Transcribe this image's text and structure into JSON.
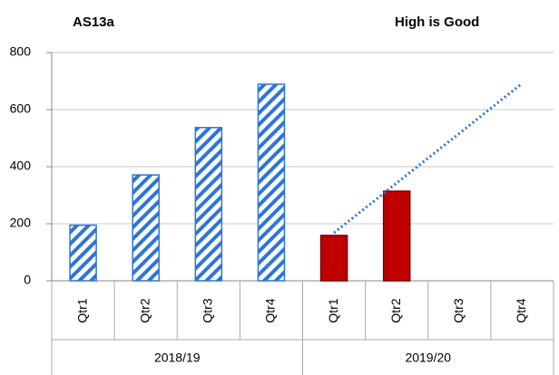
{
  "chart_data": {
    "type": "bar",
    "title": "AS13a",
    "annotation": "High is Good",
    "categories": [
      "Qtr1",
      "Qtr2",
      "Qtr3",
      "Qtr4",
      "Qtr1",
      "Qtr2",
      "Qtr3",
      "Qtr4"
    ],
    "groups": [
      "2018/19",
      "2019/20"
    ],
    "series": [
      {
        "type": "bar",
        "style": "hatch",
        "color": "#2e75d6",
        "values": [
          195,
          371,
          537,
          689,
          null,
          null,
          null,
          null
        ]
      },
      {
        "type": "bar",
        "style": "solid",
        "color": "#c00000",
        "values": [
          null,
          null,
          null,
          null,
          159,
          314,
          null,
          null
        ]
      },
      {
        "type": "line",
        "style": "dotted",
        "color": "#2e75d6",
        "values": [
          null,
          null,
          null,
          null,
          168,
          343,
          517,
          692
        ]
      }
    ],
    "ylim": [
      0,
      800
    ],
    "yticks": [
      0,
      200,
      400,
      600,
      800
    ],
    "grid": true
  }
}
